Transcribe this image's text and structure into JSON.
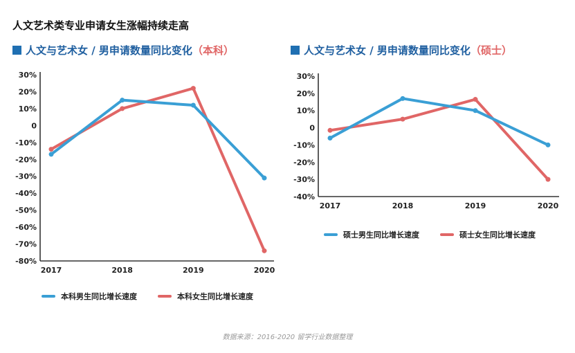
{
  "title": "人文艺术类专业申请女生涨幅持续走高",
  "source": "数据来源：2016-2020 留学行业数据整理",
  "colors": {
    "male": "#3a9fd5",
    "female": "#e06666",
    "axis": "#333333",
    "title_blue": "#1f5fa0"
  },
  "chart_data": [
    {
      "type": "line",
      "title_main": "人文与艺术女 / 男申请数量同比变化",
      "title_tag": "（本科）",
      "x": [
        "2017",
        "2018",
        "2019",
        "2020"
      ],
      "yticks": [
        "30%",
        "20%",
        "10%",
        "0",
        "-10%",
        "-20%",
        "-30%",
        "-40%",
        "-50%",
        "-60%",
        "-70%",
        "-80%"
      ],
      "ylim": [
        -80,
        30
      ],
      "series": [
        {
          "name": "本科男生同比增长速度",
          "color": "#3a9fd5",
          "values": [
            -17,
            15,
            12,
            -31
          ]
        },
        {
          "name": "本科女生同比增长速度",
          "color": "#e06666",
          "values": [
            -14,
            10,
            22,
            -74
          ]
        }
      ]
    },
    {
      "type": "line",
      "title_main": "人文与艺术女 / 男申请数量同比变化",
      "title_tag": "（硕士）",
      "x": [
        "2017",
        "2018",
        "2019",
        "2020"
      ],
      "yticks": [
        "30%",
        "20%",
        "10%",
        "0",
        "-10%",
        "-20%",
        "-30%",
        "-40%"
      ],
      "ylim": [
        -40,
        30
      ],
      "series": [
        {
          "name": "硕士男生同比增长速度",
          "color": "#3a9fd5",
          "values": [
            -6,
            17,
            10,
            -10
          ]
        },
        {
          "name": "硕士女生同比增长速度",
          "color": "#e06666",
          "values": [
            -1.5,
            5,
            16.5,
            -30
          ]
        }
      ]
    }
  ]
}
